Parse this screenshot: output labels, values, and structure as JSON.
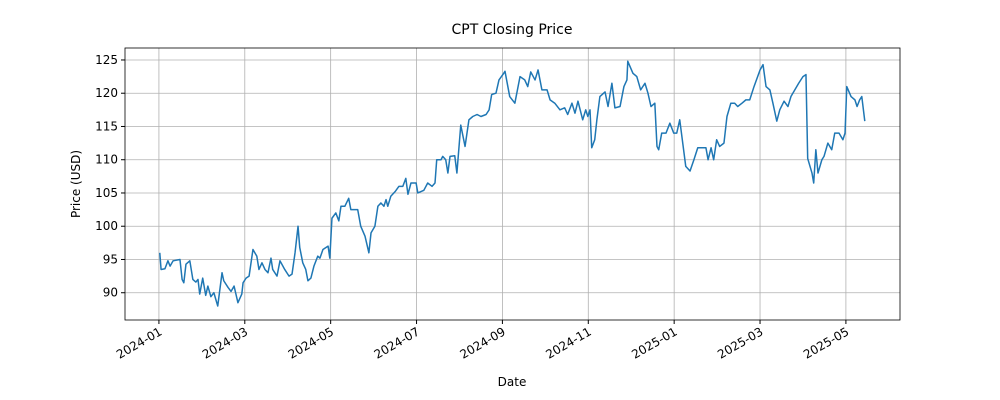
{
  "chart_data": {
    "type": "line",
    "title": "CPT Closing Price",
    "xlabel": "Date",
    "ylabel": "Price (USD)",
    "x": [
      0.02,
      0.05,
      0.14,
      0.21,
      0.26,
      0.33,
      0.49,
      0.54,
      0.58,
      0.63,
      0.72,
      0.79,
      0.86,
      0.91,
      0.95,
      1.02,
      1.09,
      1.14,
      1.21,
      1.28,
      1.37,
      1.47,
      1.51,
      1.61,
      1.68,
      1.75,
      1.84,
      1.93,
      1.96,
      2.03,
      2.1,
      2.19,
      2.28,
      2.33,
      2.4,
      2.47,
      2.54,
      2.61,
      2.65,
      2.75,
      2.82,
      2.93,
      3.03,
      3.1,
      3.17,
      3.24,
      3.28,
      3.35,
      3.42,
      3.47,
      3.54,
      3.61,
      3.7,
      3.75,
      3.82,
      3.94,
      3.98,
      4.03,
      4.12,
      4.19,
      4.24,
      4.33,
      4.42,
      4.47,
      4.59,
      4.63,
      4.7,
      4.8,
      4.89,
      4.94,
      5.03,
      5.1,
      5.17,
      5.24,
      5.29,
      5.33,
      5.4,
      5.5,
      5.59,
      5.68,
      5.75,
      5.8,
      5.87,
      5.99,
      6.03,
      6.17,
      6.26,
      6.36,
      6.43,
      6.47,
      6.57,
      6.61,
      6.68,
      6.73,
      6.78,
      6.89,
      6.94,
      7.03,
      7.13,
      7.22,
      7.31,
      7.41,
      7.5,
      7.62,
      7.69,
      7.75,
      7.85,
      7.92,
      8.01,
      8.06,
      8.17,
      8.29,
      8.41,
      8.52,
      8.59,
      8.66,
      8.76,
      8.83,
      8.92,
      9.04,
      9.11,
      9.22,
      9.34,
      9.45,
      9.52,
      9.62,
      9.69,
      9.76,
      9.87,
      9.94,
      9.99,
      10.04,
      10.08,
      10.15,
      10.2,
      10.27,
      10.39,
      10.46,
      10.55,
      10.62,
      10.74,
      10.83,
      10.9,
      10.92,
      11.04,
      11.13,
      11.22,
      11.32,
      11.39,
      11.46,
      11.55,
      11.6,
      11.64,
      11.71,
      11.81,
      11.9,
      11.99,
      12.06,
      12.13,
      12.18,
      12.27,
      12.37,
      12.46,
      12.55,
      12.65,
      12.74,
      12.79,
      12.86,
      12.92,
      12.99,
      13.06,
      13.16,
      13.23,
      13.32,
      13.41,
      13.48,
      13.58,
      13.67,
      13.76,
      13.86,
      14.0,
      14.07,
      14.14,
      14.23,
      14.3,
      14.39,
      14.46,
      14.56,
      14.65,
      14.72,
      14.81,
      14.9,
      15.0,
      15.07,
      15.11,
      15.21,
      15.25,
      15.3,
      15.35,
      15.44,
      15.49,
      15.58,
      15.67,
      15.74,
      15.84,
      15.93,
      15.98,
      16.02,
      16.12,
      16.21,
      16.26,
      16.32,
      16.37,
      16.44
    ],
    "values": [
      96,
      93.5,
      93.6,
      94.8,
      94,
      94.8,
      95,
      92,
      91.5,
      94.3,
      94.8,
      92,
      91.6,
      92,
      89.8,
      92.2,
      89.6,
      91,
      89.4,
      90,
      88,
      93,
      91.8,
      90.8,
      90.2,
      91,
      88.5,
      89.8,
      91.5,
      92.2,
      92.5,
      96.5,
      95.5,
      93.5,
      94.5,
      93.5,
      93,
      95.2,
      93.5,
      92.5,
      94.8,
      93.5,
      92.5,
      92.8,
      96,
      100,
      96.8,
      94.5,
      93.5,
      91.8,
      92.2,
      94,
      95.5,
      95.2,
      96.5,
      97,
      95.2,
      101.2,
      102,
      100.8,
      103,
      103,
      104.2,
      102.5,
      102.5,
      102.5,
      100,
      98.5,
      96,
      99,
      100,
      103,
      103.5,
      103,
      104,
      103,
      104.5,
      105.2,
      106,
      106,
      107.2,
      104.8,
      106.5,
      106.5,
      105,
      105.4,
      106.5,
      106,
      106.5,
      110,
      110,
      110.5,
      110,
      108,
      110.5,
      110.6,
      108,
      115.2,
      112,
      116,
      116.5,
      116.8,
      116.5,
      116.8,
      117.5,
      119.8,
      120,
      122,
      122.8,
      123.3,
      119.5,
      118.5,
      122.5,
      122,
      121,
      123.2,
      122,
      123.5,
      120.5,
      120.5,
      119,
      118.5,
      117.5,
      117.8,
      116.8,
      118.5,
      117,
      118.8,
      116,
      117.5,
      116.5,
      117.5,
      111.8,
      113,
      116,
      119.5,
      120.2,
      118,
      121.5,
      117.8,
      118,
      121,
      122,
      124.8,
      123,
      122.5,
      120.5,
      121.5,
      120,
      118,
      118.5,
      112,
      111.5,
      114,
      114,
      115.5,
      114,
      114,
      116,
      113.5,
      109,
      108.3,
      110,
      111.8,
      111.8,
      111.8,
      110,
      111.8,
      110,
      113,
      112,
      112.5,
      116.5,
      118.5,
      118.5,
      118,
      118.5,
      119,
      119,
      121,
      123.5,
      124.3,
      121,
      120.5,
      118.5,
      115.8,
      117.5,
      118.8,
      118,
      119.5,
      120.5,
      121.5,
      122.5,
      122.8,
      110.2,
      108,
      106.5,
      111.5,
      108,
      110,
      110.5,
      112.5,
      111.5,
      114,
      114,
      113,
      114,
      121,
      119.5,
      119,
      118,
      119,
      119.5,
      115.8
    ],
    "color": "#1f77b4",
    "xlim": [
      -0.79,
      17.26
    ],
    "xticks": [
      {
        "value": 0,
        "label": "2024-01"
      },
      {
        "value": 2,
        "label": "2024-03"
      },
      {
        "value": 4,
        "label": "2024-05"
      },
      {
        "value": 6,
        "label": "2024-07"
      },
      {
        "value": 8,
        "label": "2024-09"
      },
      {
        "value": 10,
        "label": "2024-11"
      },
      {
        "value": 12,
        "label": "2025-01"
      },
      {
        "value": 14,
        "label": "2025-03"
      },
      {
        "value": 16,
        "label": "2025-05"
      }
    ],
    "ylim": [
      85.9,
      126.8
    ],
    "yticks": [
      90,
      95,
      100,
      105,
      110,
      115,
      120,
      125
    ],
    "grid": true
  }
}
